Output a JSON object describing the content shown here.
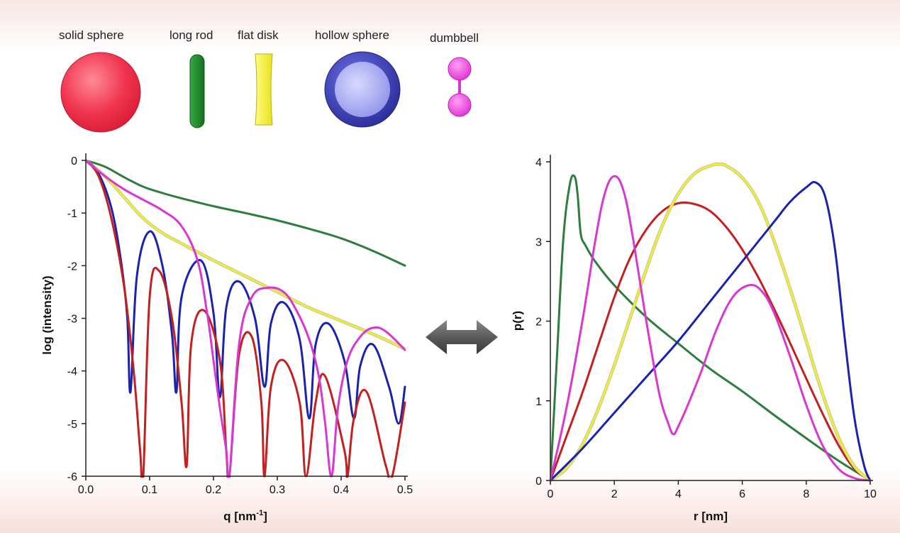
{
  "shapes": [
    {
      "label": "solid sphere",
      "icon": "solid-sphere-icon",
      "color": "#e8304a"
    },
    {
      "label": "long rod",
      "icon": "long-rod-icon",
      "color": "#1e8a2e"
    },
    {
      "label": "flat disk",
      "icon": "flat-disk-icon",
      "color": "#f2ee38"
    },
    {
      "label": "hollow sphere",
      "icon": "hollow-sphere-icon",
      "color": "#3a3ec0"
    },
    {
      "label": "dumbbell",
      "icon": "dumbbell-icon",
      "color": "#e040d8"
    }
  ],
  "transform_icon": "double-arrow-icon",
  "chart_data": [
    {
      "type": "line",
      "xlabel": "q [nm",
      "xlabel_sup": "-1",
      "xlabel_suffix": "]",
      "ylabel": "log (intensity)",
      "xlim": [
        0,
        0.5
      ],
      "ylim": [
        -6,
        0
      ],
      "xticks": [
        "0.0",
        "0.1",
        "0.2",
        "0.3",
        "0.4",
        "0.5"
      ],
      "yticks": [
        "0",
        "-1",
        "-2",
        "-3",
        "-4",
        "-5",
        "-6"
      ],
      "grid": false,
      "series": [
        {
          "color": "#2e7d3e",
          "x": [
            0,
            0.03,
            0.06,
            0.09,
            0.12,
            0.15,
            0.2,
            0.25,
            0.3,
            0.35,
            0.4,
            0.45,
            0.5
          ],
          "y": [
            0,
            -0.12,
            -0.32,
            -0.5,
            -0.62,
            -0.72,
            -0.87,
            -1.0,
            -1.14,
            -1.3,
            -1.48,
            -1.72,
            -2.0
          ]
        },
        {
          "color": "#eded3a",
          "x": [
            0,
            0.03,
            0.06,
            0.09,
            0.12,
            0.15,
            0.2,
            0.25,
            0.3,
            0.35,
            0.4,
            0.45,
            0.5
          ],
          "y": [
            0,
            -0.3,
            -0.7,
            -1.1,
            -1.38,
            -1.58,
            -1.9,
            -2.2,
            -2.5,
            -2.8,
            -3.05,
            -3.3,
            -3.58
          ]
        },
        {
          "color": "#1c22b0",
          "x": [
            0,
            0.02,
            0.04,
            0.055,
            0.065,
            0.07,
            0.08,
            0.1,
            0.12,
            0.135,
            0.142,
            0.15,
            0.18,
            0.2,
            0.21,
            0.22,
            0.24,
            0.265,
            0.28,
            0.29,
            0.31,
            0.335,
            0.35,
            0.36,
            0.38,
            0.405,
            0.42,
            0.43,
            0.45,
            0.475,
            0.49,
            0.5
          ],
          "y": [
            0,
            -0.25,
            -0.9,
            -1.9,
            -3.0,
            -4.4,
            -2.2,
            -1.35,
            -2.0,
            -3.3,
            -4.4,
            -2.6,
            -1.9,
            -2.9,
            -4.5,
            -2.8,
            -2.3,
            -3.0,
            -4.3,
            -3.1,
            -2.7,
            -3.4,
            -4.9,
            -3.5,
            -3.1,
            -3.8,
            -4.9,
            -3.9,
            -3.5,
            -4.3,
            -5.0,
            -4.3
          ]
        },
        {
          "color": "#c42020",
          "x": [
            0,
            0.02,
            0.04,
            0.06,
            0.075,
            0.085,
            0.09,
            0.1,
            0.115,
            0.135,
            0.15,
            0.158,
            0.165,
            0.185,
            0.21,
            0.22,
            0.225,
            0.24,
            0.26,
            0.275,
            0.28,
            0.29,
            0.31,
            0.335,
            0.345,
            0.36,
            0.375,
            0.405,
            0.41,
            0.42,
            0.44,
            0.47,
            0.48,
            0.5
          ],
          "y": [
            0,
            -0.3,
            -1.1,
            -2.4,
            -4.0,
            -5.5,
            -6.0,
            -2.6,
            -2.1,
            -3.0,
            -4.6,
            -5.8,
            -3.5,
            -2.85,
            -3.8,
            -5.5,
            -6.0,
            -3.7,
            -3.35,
            -4.6,
            -6.0,
            -4.3,
            -3.8,
            -4.6,
            -6.0,
            -4.6,
            -4.1,
            -5.5,
            -6.0,
            -4.9,
            -4.4,
            -5.8,
            -6.0,
            -4.6
          ]
        },
        {
          "color": "#d838d0",
          "x": [
            0,
            0.03,
            0.06,
            0.09,
            0.12,
            0.15,
            0.175,
            0.19,
            0.2,
            0.21,
            0.22,
            0.225,
            0.24,
            0.26,
            0.285,
            0.31,
            0.33,
            0.35,
            0.365,
            0.375,
            0.385,
            0.395,
            0.41,
            0.43,
            0.45,
            0.47,
            0.5
          ],
          "y": [
            0,
            -0.3,
            -0.55,
            -0.75,
            -0.95,
            -1.25,
            -1.9,
            -2.9,
            -3.8,
            -4.7,
            -5.5,
            -6.0,
            -3.5,
            -2.6,
            -2.42,
            -2.5,
            -2.85,
            -3.4,
            -4.1,
            -5.0,
            -6.0,
            -4.7,
            -3.8,
            -3.35,
            -3.18,
            -3.25,
            -3.6
          ]
        }
      ]
    },
    {
      "type": "line",
      "xlabel": "r [nm]",
      "ylabel": "p(r)",
      "xlim": [
        0,
        10
      ],
      "ylim": [
        0,
        4
      ],
      "xticks": [
        "0",
        "2",
        "4",
        "6",
        "8",
        "10"
      ],
      "yticks": [
        "4",
        "3",
        "2",
        "1",
        "0"
      ],
      "grid": false,
      "series": [
        {
          "color": "#2e7d3e",
          "x": [
            0,
            0.2,
            0.4,
            0.6,
            0.75,
            0.85,
            0.95,
            1.1,
            1.4,
            2,
            3,
            4,
            5,
            6,
            7,
            8,
            9,
            10
          ],
          "y": [
            0,
            1.5,
            3.0,
            3.7,
            3.82,
            3.6,
            3.1,
            2.95,
            2.75,
            2.45,
            2.05,
            1.72,
            1.4,
            1.12,
            0.82,
            0.53,
            0.25,
            0
          ]
        },
        {
          "color": "#c42020",
          "x": [
            0,
            0.5,
            1,
            1.5,
            2,
            2.5,
            3,
            3.5,
            4,
            4.5,
            5,
            5.5,
            6,
            6.5,
            7,
            7.5,
            8,
            8.5,
            9,
            9.5,
            10
          ],
          "y": [
            0,
            0.55,
            1.1,
            1.7,
            2.3,
            2.8,
            3.15,
            3.38,
            3.48,
            3.47,
            3.38,
            3.18,
            2.9,
            2.55,
            2.15,
            1.72,
            1.28,
            0.85,
            0.45,
            0.15,
            0
          ]
        },
        {
          "color": "#eded3a",
          "x": [
            0,
            0.5,
            1,
            1.5,
            2,
            2.5,
            3,
            3.5,
            4,
            4.5,
            5,
            5.25,
            5.5,
            6,
            6.5,
            7,
            7.5,
            8,
            8.5,
            9,
            9.5,
            10
          ],
          "y": [
            0,
            0.15,
            0.45,
            0.9,
            1.45,
            2.05,
            2.65,
            3.2,
            3.6,
            3.85,
            3.95,
            3.97,
            3.95,
            3.8,
            3.5,
            3.0,
            2.4,
            1.75,
            1.1,
            0.55,
            0.18,
            0
          ]
        },
        {
          "color": "#1c22b0",
          "x": [
            0,
            1,
            2,
            3,
            4,
            5,
            6,
            7,
            7.5,
            8,
            8.3,
            8.6,
            8.9,
            9.2,
            9.5,
            9.8,
            10
          ],
          "y": [
            0,
            0.4,
            0.85,
            1.3,
            1.75,
            2.25,
            2.75,
            3.25,
            3.5,
            3.68,
            3.74,
            3.55,
            2.9,
            1.8,
            0.8,
            0.2,
            0
          ]
        },
        {
          "color": "#d838d0",
          "x": [
            0,
            0.5,
            1,
            1.4,
            1.7,
            2,
            2.3,
            2.6,
            3,
            3.4,
            3.7,
            3.85,
            4,
            4.3,
            4.7,
            5.2,
            5.7,
            6.2,
            6.6,
            7,
            7.5,
            8,
            8.5,
            9,
            9.5,
            10
          ],
          "y": [
            0,
            0.9,
            2.0,
            3.0,
            3.6,
            3.82,
            3.62,
            3.0,
            2.0,
            1.1,
            0.7,
            0.58,
            0.68,
            0.95,
            1.35,
            1.9,
            2.3,
            2.45,
            2.38,
            2.1,
            1.55,
            0.95,
            0.45,
            0.15,
            0.03,
            0
          ]
        }
      ]
    }
  ]
}
